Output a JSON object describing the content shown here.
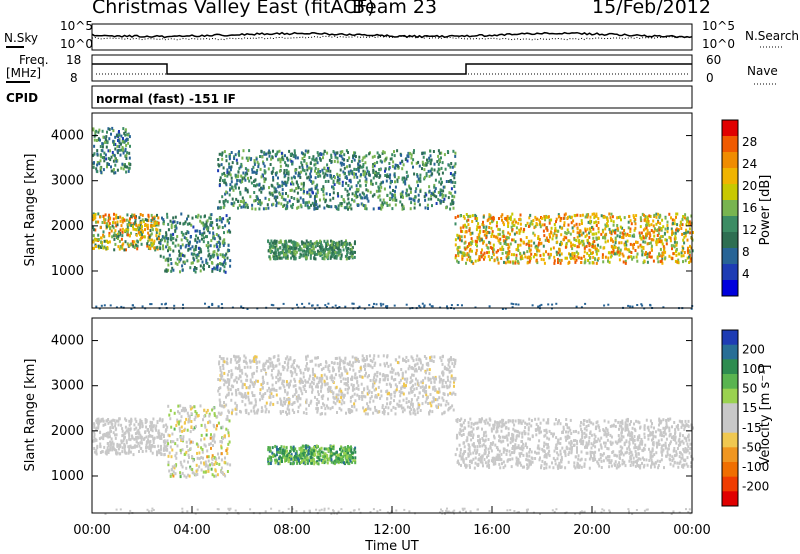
{
  "header": {
    "title": "Christmas Valley East (fitACF)",
    "beam": "Beam 23",
    "date": "15/Feb/2012"
  },
  "strip": {
    "nsky_label": "N.Sky",
    "nsearch_label": "N.Search",
    "freq_label_1": "Freq.",
    "freq_label_2": "[MHz]",
    "nave_label": "Nave",
    "cpid_label": "CPID",
    "cpid_value": "normal (fast) -151 IF",
    "noise_left_ticks": [
      "10^5",
      "10^0"
    ],
    "noise_right_ticks": [
      "10^5",
      "10^0"
    ],
    "freq_ticks": [
      "18",
      "8"
    ],
    "nave_ticks": [
      "60",
      "0"
    ]
  },
  "colorbars": {
    "power": {
      "label": "Power [dB]",
      "ticks": [
        "28",
        "24",
        "20",
        "16",
        "12",
        "8",
        "4"
      ],
      "colors": [
        "#e00000",
        "#f05a00",
        "#f08c00",
        "#f0b400",
        "#c8c800",
        "#78b450",
        "#3c8c64",
        "#2e6e52",
        "#286496",
        "#1e3cb4",
        "#0000dc"
      ]
    },
    "velocity": {
      "label": "Velocity [m s⁻¹]",
      "ticks": [
        "200",
        "100",
        "50",
        "15",
        "-15",
        "-50",
        "-100",
        "-200"
      ],
      "colors": [
        "#1e3cb4",
        "#286e96",
        "#2e8c50",
        "#5ab450",
        "#9ad250",
        "#c8c8c8",
        "#c8c8c8",
        "#f0c850",
        "#f09620",
        "#f06e00",
        "#f03c00",
        "#e00000"
      ]
    }
  },
  "axes": {
    "ylabel": "Slant Range [km]",
    "xlabel": "Time UT",
    "yticks": [
      "4000",
      "3000",
      "2000",
      "1000"
    ],
    "xticks": [
      "00:00",
      "04:00",
      "08:00",
      "12:00",
      "16:00",
      "20:00",
      "00:00"
    ]
  },
  "chart_data": [
    {
      "type": "heatmap",
      "title": "Power",
      "x_range_hours": [
        0,
        24
      ],
      "ylim_km": [
        180,
        4500
      ],
      "xlabel": "Time UT",
      "ylabel": "Slant Range [km]",
      "colorbar": "Power [dB]",
      "echo_bands": [
        {
          "t": [
            0.0,
            2.7
          ],
          "range_km": [
            1500,
            2300
          ],
          "power_db": [
            8,
            28
          ]
        },
        {
          "t": [
            0.0,
            1.5
          ],
          "range_km": [
            3200,
            4200
          ],
          "power_db": [
            4,
            16
          ]
        },
        {
          "t": [
            2.7,
            5.5
          ],
          "range_km": [
            1000,
            2300
          ],
          "power_db": [
            4,
            16
          ]
        },
        {
          "t": [
            5.0,
            14.5
          ],
          "range_km": [
            2400,
            3700
          ],
          "power_db": [
            4,
            16
          ]
        },
        {
          "t": [
            7.0,
            10.5
          ],
          "range_km": [
            1300,
            1700
          ],
          "power_db": [
            8,
            16
          ]
        },
        {
          "t": [
            14.5,
            24.0
          ],
          "range_km": [
            1200,
            2300
          ],
          "power_db": [
            12,
            28
          ]
        }
      ]
    },
    {
      "type": "heatmap",
      "title": "Velocity",
      "x_range_hours": [
        0,
        24
      ],
      "ylim_km": [
        180,
        4500
      ],
      "xlabel": "Time UT",
      "ylabel": "Slant Range [km]",
      "colorbar": "Velocity [m s⁻¹]",
      "echo_bands": [
        {
          "t": [
            0.0,
            3.0
          ],
          "range_km": [
            1500,
            2300
          ],
          "velocity_ms": [
            -15,
            15
          ]
        },
        {
          "t": [
            3.0,
            5.5
          ],
          "range_km": [
            1000,
            2600
          ],
          "velocity_ms": [
            -100,
            100
          ]
        },
        {
          "t": [
            5.0,
            14.5
          ],
          "range_km": [
            2400,
            3700
          ],
          "velocity_ms": [
            -50,
            15
          ]
        },
        {
          "t": [
            7.0,
            10.5
          ],
          "range_km": [
            1300,
            1700
          ],
          "velocity_ms": [
            50,
            200
          ]
        },
        {
          "t": [
            14.5,
            24.0
          ],
          "range_km": [
            1200,
            2300
          ],
          "velocity_ms": [
            -15,
            15
          ]
        }
      ]
    }
  ]
}
